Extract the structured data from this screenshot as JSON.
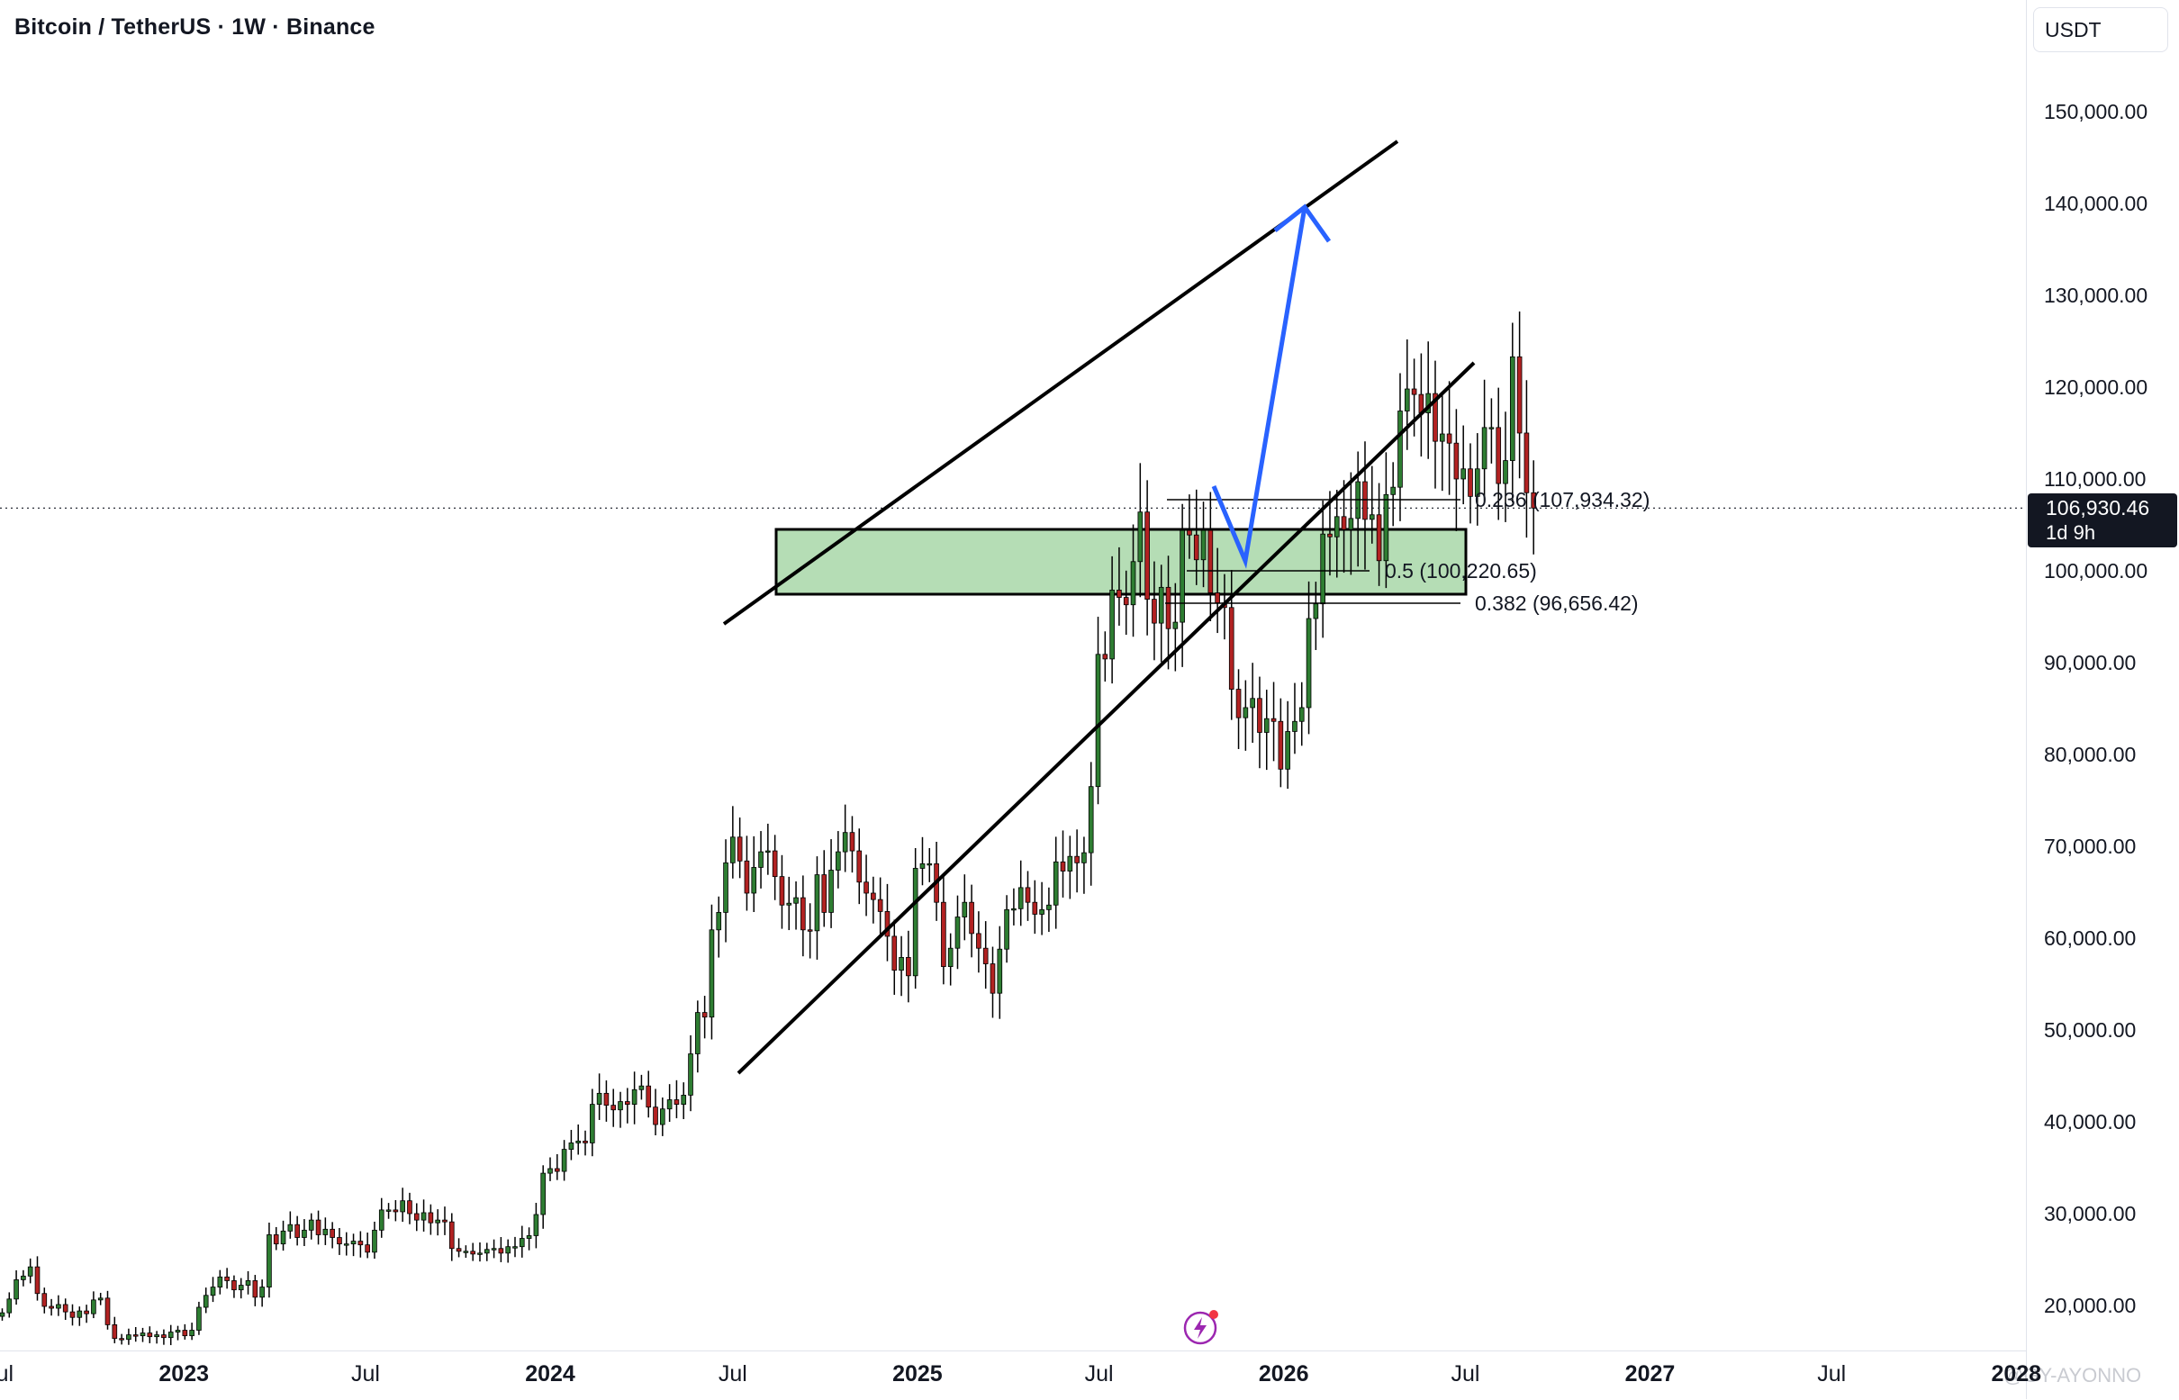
{
  "header": {
    "title": "Bitcoin / TetherUS · 1W · Binance",
    "currency": "USDT"
  },
  "last_price": {
    "value": "106,930.46",
    "countdown": "1d 9h"
  },
  "fib_levels": [
    {
      "label": "0.236 (107,934.32)",
      "price": 107934.32
    },
    {
      "label": "0.5 (100,220.65)",
      "price": 100220.65
    },
    {
      "label": "0.382 (96,656.42)",
      "price": 96656.42
    }
  ],
  "watermark": "@GY-AYONNO",
  "colors": {
    "up": "#26a69a",
    "up_body": "#1b5e20",
    "down": "#b22222",
    "zone_fill": "#b5ddb5",
    "projection": "#2962ff",
    "trendline": "#000000"
  },
  "icons": {
    "alert": "lightning-icon"
  },
  "chart_data": {
    "type": "candlestick",
    "title": "Bitcoin / TetherUS · 1W · Binance",
    "ylabel": "USDT",
    "ylim": [
      15000,
      155000
    ],
    "xlim": [
      "2022-06-27",
      "2028-01-10"
    ],
    "y_ticks": [
      "20,000.00",
      "30,000.00",
      "40,000.00",
      "50,000.00",
      "60,000.00",
      "70,000.00",
      "80,000.00",
      "90,000.00",
      "100,000.00",
      "110,000.00",
      "120,000.00",
      "130,000.00",
      "140,000.00",
      "150,000.00"
    ],
    "y_tick_values": [
      20000,
      30000,
      40000,
      50000,
      60000,
      70000,
      80000,
      90000,
      100000,
      110000,
      120000,
      130000,
      140000,
      150000
    ],
    "x_ticks": [
      {
        "label": "Jul",
        "date": "2022-07-01",
        "year": false
      },
      {
        "label": "2023",
        "date": "2023-01-01",
        "year": true
      },
      {
        "label": "Jul",
        "date": "2023-07-01",
        "year": false
      },
      {
        "label": "2024",
        "date": "2024-01-01",
        "year": true
      },
      {
        "label": "Jul",
        "date": "2024-07-01",
        "year": false
      },
      {
        "label": "2025",
        "date": "2025-01-01",
        "year": true
      },
      {
        "label": "Jul",
        "date": "2025-07-01",
        "year": false
      },
      {
        "label": "2026",
        "date": "2026-01-01",
        "year": true
      },
      {
        "label": "Jul",
        "date": "2026-07-01",
        "year": false
      },
      {
        "label": "2027",
        "date": "2027-01-01",
        "year": true
      },
      {
        "label": "Jul",
        "date": "2027-07-01",
        "year": false
      },
      {
        "label": "2028",
        "date": "2028-01-01",
        "year": true
      }
    ],
    "weekly_closes_start": "2022-07-04",
    "weekly_closes": [
      19300,
      20800,
      22900,
      23300,
      24300,
      21400,
      20000,
      19800,
      20200,
      19400,
      18800,
      19500,
      19200,
      20700,
      20900,
      18000,
      16500,
      16400,
      16900,
      16800,
      17100,
      16700,
      16900,
      16600,
      17200,
      17400,
      16800,
      17400,
      19900,
      21200,
      22100,
      23200,
      22800,
      21800,
      22300,
      22800,
      21000,
      22100,
      27800,
      26800,
      28200,
      28900,
      27500,
      28300,
      29400,
      27800,
      28400,
      27500,
      26800,
      26800,
      27100,
      26700,
      25900,
      28300,
      30500,
      30500,
      30300,
      31500,
      30100,
      29400,
      30200,
      29100,
      29400,
      29200,
      26300,
      26000,
      26000,
      25700,
      25800,
      26200,
      26300,
      25800,
      26500,
      26500,
      27400,
      27700,
      30000,
      34500,
      35000,
      34700,
      37100,
      37800,
      38000,
      37800,
      42000,
      43200,
      41900,
      41400,
      42300,
      42000,
      43600,
      44000,
      41700,
      39800,
      41500,
      42500,
      42000,
      43000,
      47500,
      52000,
      51500,
      61000,
      62900,
      68300,
      71100,
      68500,
      65000,
      67800,
      69500,
      69600,
      66800,
      63700,
      63900,
      64500,
      61000,
      60900,
      67000,
      62900,
      67500,
      69500,
      71600,
      69600,
      66200,
      65000,
      64300,
      63000,
      60300,
      56600,
      58000,
      56000,
      67700,
      68200,
      68200,
      64000,
      57000,
      59000,
      62400,
      64000,
      60600,
      59000,
      57300,
      54100,
      58900,
      63200,
      63300,
      65600,
      64000,
      62700,
      63200,
      63700,
      68400,
      67400,
      69000,
      68300,
      69400,
      76600,
      91000,
      90500,
      98000,
      97200,
      96400,
      101100,
      106500,
      97000,
      94400,
      98300,
      93800,
      94500,
      104500,
      104000,
      101300,
      104500,
      97700,
      96600,
      96100,
      87200,
      84100,
      85200,
      86200,
      82500,
      84000,
      83700,
      78500,
      82600,
      83700,
      85200,
      94900,
      96500,
      104100,
      103800,
      106000,
      104600,
      105800,
      109800,
      105700,
      106200,
      101200,
      108400,
      109200,
      117500,
      119900,
      119300,
      117300,
      119400,
      114200,
      115000,
      114000,
      110100,
      111200,
      108200,
      111200,
      115700,
      115700,
      109600,
      112100,
      123400,
      115100,
      108600,
      106930
    ]
  }
}
